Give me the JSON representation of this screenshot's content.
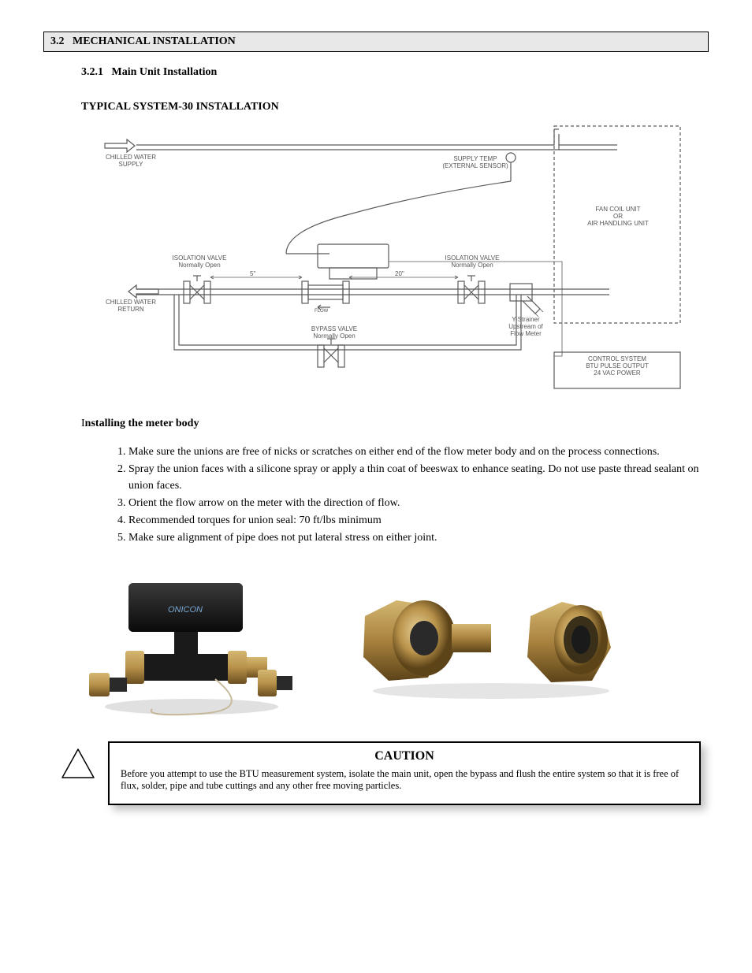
{
  "section": {
    "number": "3.2",
    "title": "MECHANICAL INSTALLATION"
  },
  "subsection": {
    "number": "3.2.1",
    "title": "Main Unit Installation"
  },
  "install_heading": "TYPICAL SYSTEM-30 INSTALLATION",
  "diagram": {
    "labels": {
      "chilled_supply": "CHILLED WATER\nSUPPLY",
      "supply_temp": "SUPPLY TEMP\n(EXTERNAL SENSOR)",
      "fcu": "FAN COIL UNIT\nOR\nAIR HANDLING UNIT",
      "iso_left": "ISOLATION VALVE\nNormally Open",
      "iso_right": "ISOLATION VALVE\nNormally Open",
      "len5": "5\"",
      "len20": "20\"",
      "chilled_return": "CHILLED WATER\nRETURN",
      "flow": "FLOW",
      "bypass": "BYPASS VALVE\nNormally Open",
      "ystrainer": "Y-Strainer\nUpstream of\nFlow Meter",
      "control": "CONTROL SYSTEM\nBTU PULSE OUTPUT\n24 VAC POWER"
    },
    "colors": {
      "line": "#5a5a5a",
      "box_border": "#5a5a5a",
      "text": "#555555"
    }
  },
  "meter_body_heading": {
    "prefix": "I",
    "rest": "nstalling the meter body"
  },
  "steps": [
    "Make sure the unions are free of nicks or scratches on either end of the flow meter body and on the process connections.",
    "Spray the union faces with a silicone spray or apply a thin coat of beeswax to enhance seating. Do not use paste thread sealant on union faces.",
    "Orient the flow arrow on the meter with the direction of flow.",
    "Recommended torques for union seal: 70 ft/lbs minimum",
    "Make sure alignment of pipe does not put lateral stress on either joint."
  ],
  "photos": {
    "meter_label": "ONICON",
    "colors": {
      "black": "#1a1a1a",
      "brass": "#b8924a",
      "brass_dark": "#8a6a2e",
      "brass_light": "#d4b772",
      "cable": "#c7b89a"
    }
  },
  "caution": {
    "title": "CAUTION",
    "text": "Before you attempt to use the BTU measurement system, isolate the main unit, open the bypass and flush the entire system so that it is free of flux, solder, pipe and tube cuttings and any other free moving particles."
  }
}
